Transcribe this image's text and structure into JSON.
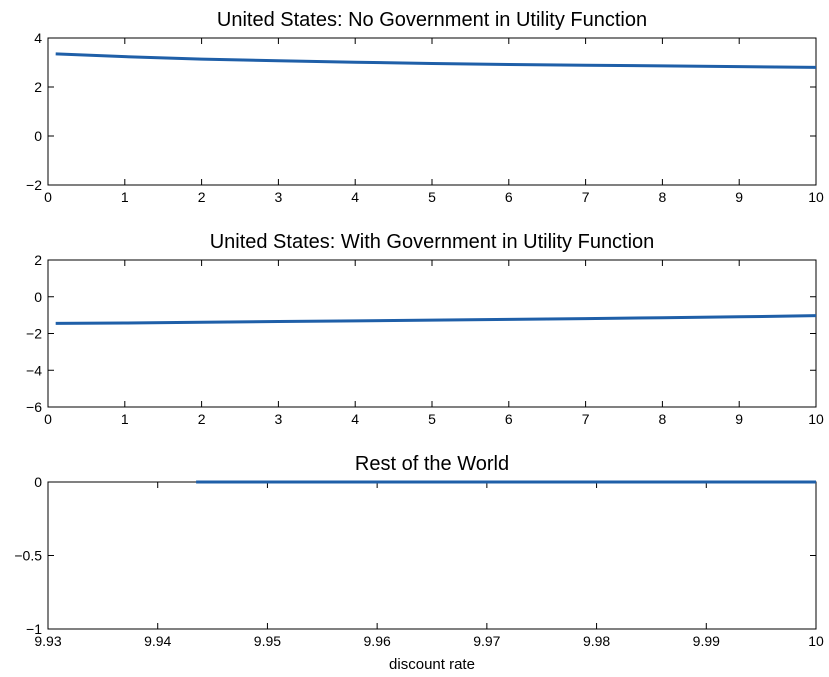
{
  "chart_data": [
    {
      "type": "line",
      "title": "United States: No Government in Utility Function",
      "xlabel": "",
      "ylabel": "",
      "xlim": [
        0,
        10
      ],
      "ylim": [
        -2,
        4
      ],
      "xticks": [
        "0",
        "1",
        "2",
        "3",
        "4",
        "5",
        "6",
        "7",
        "8",
        "9",
        "10"
      ],
      "yticks": [
        "−2",
        "0",
        "2",
        "4"
      ],
      "grid": false,
      "series": [
        {
          "color": "#1f5fa8",
          "x": [
            0.1,
            1,
            2,
            3,
            4,
            5,
            6,
            7,
            8,
            9,
            10
          ],
          "y": [
            3.35,
            3.24,
            3.14,
            3.07,
            3.01,
            2.96,
            2.92,
            2.89,
            2.86,
            2.83,
            2.8
          ]
        }
      ]
    },
    {
      "type": "line",
      "title": "United States: With Government in Utility Function",
      "xlabel": "",
      "ylabel": "",
      "xlim": [
        0,
        10
      ],
      "ylim": [
        -6,
        2
      ],
      "xticks": [
        "0",
        "1",
        "2",
        "3",
        "4",
        "5",
        "6",
        "7",
        "8",
        "9",
        "10"
      ],
      "yticks": [
        "−6",
        "−4",
        "−2",
        "0",
        "2"
      ],
      "grid": false,
      "series": [
        {
          "color": "#1f5fa8",
          "x": [
            0.1,
            1,
            2,
            3,
            4,
            5,
            6,
            7,
            8,
            9,
            10
          ],
          "y": [
            -1.45,
            -1.43,
            -1.39,
            -1.35,
            -1.31,
            -1.27,
            -1.23,
            -1.19,
            -1.14,
            -1.09,
            -1.03
          ]
        }
      ]
    },
    {
      "type": "line",
      "title": "Rest of the World",
      "xlabel": "discount rate",
      "ylabel": "",
      "xlim": [
        9.93,
        10
      ],
      "ylim": [
        -1,
        0
      ],
      "xticks": [
        "9.93",
        "9.94",
        "9.95",
        "9.96",
        "9.97",
        "9.98",
        "9.99",
        "10"
      ],
      "yticks": [
        "−1",
        "−0.5",
        "0"
      ],
      "grid": false,
      "series": [
        {
          "color": "#1f5fa8",
          "x": [
            9.9435,
            10
          ],
          "y": [
            0,
            0
          ]
        }
      ]
    }
  ]
}
